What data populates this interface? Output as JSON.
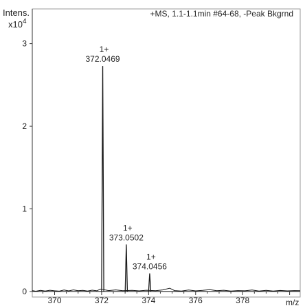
{
  "chart_data": {
    "type": "line",
    "title": "+MS, 1.1-1.1min #64-68, -Peak Bkgrnd",
    "ylabel": "Intens.",
    "yexponent": "x10",
    "yexponent_power": "4",
    "xlabel": "m/z",
    "xlim": [
      369.05,
      380.45
    ],
    "ylim": [
      0,
      3.42
    ],
    "xticks": [
      "370",
      "372",
      "374",
      "376",
      "378"
    ],
    "yticks": [
      "0",
      "1",
      "2",
      "3"
    ],
    "grid": false,
    "series": [
      {
        "peaks": [
          {
            "x": 372.0469,
            "y": 2.73
          },
          {
            "x": 373.0502,
            "y": 0.57
          },
          {
            "x": 374.0456,
            "y": 0.22
          }
        ]
      }
    ],
    "annotations": [
      {
        "x": 372.0469,
        "charge": "1+",
        "label": "372.0469"
      },
      {
        "x": 373.0502,
        "charge": "1+",
        "label": "373.0502"
      },
      {
        "x": 374.0456,
        "charge": "1+",
        "label": "374.0456"
      }
    ],
    "noise_points": [
      [
        369.05,
        0.012
      ],
      [
        369.2,
        0.004
      ],
      [
        369.4,
        0.014
      ],
      [
        369.6,
        0.007
      ],
      [
        369.8,
        0.016
      ],
      [
        370.0,
        0.009
      ],
      [
        370.2,
        0.005
      ],
      [
        370.4,
        0.018
      ],
      [
        370.6,
        0.008
      ],
      [
        370.8,
        0.02
      ],
      [
        371.0,
        0.01
      ],
      [
        371.2,
        0.015
      ],
      [
        371.4,
        0.006
      ],
      [
        371.6,
        0.017
      ],
      [
        371.8,
        0.009
      ],
      [
        371.95,
        0.03
      ],
      [
        372.3,
        0.012
      ],
      [
        372.6,
        0.02
      ],
      [
        372.9,
        0.01
      ],
      [
        373.3,
        0.014
      ],
      [
        373.6,
        0.008
      ],
      [
        373.9,
        0.016
      ],
      [
        374.3,
        0.01
      ],
      [
        374.6,
        0.02
      ],
      [
        374.9,
        0.04
      ],
      [
        375.1,
        0.012
      ],
      [
        375.4,
        0.006
      ],
      [
        375.7,
        0.018
      ],
      [
        376.0,
        0.008
      ],
      [
        376.3,
        0.014
      ],
      [
        376.6,
        0.022
      ],
      [
        376.9,
        0.01
      ],
      [
        377.2,
        0.016
      ],
      [
        377.5,
        0.006
      ],
      [
        377.8,
        0.012
      ],
      [
        378.1,
        0.009
      ],
      [
        378.4,
        0.018
      ],
      [
        378.7,
        0.007
      ],
      [
        379.0,
        0.015
      ],
      [
        379.3,
        0.006
      ],
      [
        379.6,
        0.013
      ],
      [
        379.9,
        0.008
      ],
      [
        380.2,
        0.012
      ],
      [
        380.45,
        0.01
      ]
    ],
    "colors": {
      "axis": "#333333",
      "trace": "#1a1a1a",
      "frame": "#9a9a9a"
    }
  }
}
